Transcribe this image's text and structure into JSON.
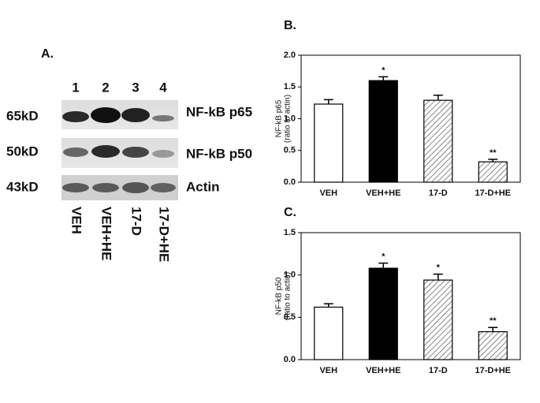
{
  "panel_a": {
    "label": "A.",
    "lanes": [
      "1",
      "2",
      "3",
      "4"
    ],
    "rows": [
      {
        "size": "65kD",
        "protein": "NF-kB p65"
      },
      {
        "size": "50kD",
        "protein": "NF-kB p50"
      },
      {
        "size": "43kD",
        "protein": "Actin"
      }
    ],
    "conditions": [
      "VEH",
      "VEH+HE",
      "17-D",
      "17-D+HE"
    ]
  },
  "chart_data": [
    {
      "type": "bar",
      "panel": "B.",
      "y_label": "NF-kB p65",
      "y_sublabel": "(ratio to actin)",
      "categories": [
        "VEH",
        "VEH+HE",
        "17-D",
        "17-D+HE"
      ],
      "values": [
        1.23,
        1.6,
        1.29,
        0.32
      ],
      "errors": [
        0.07,
        0.06,
        0.08,
        0.04
      ],
      "annotations": [
        null,
        "*",
        null,
        "**"
      ],
      "bar_fills": [
        "#ffffff",
        "#000000",
        "hatch",
        "hatch"
      ],
      "ylim": [
        0,
        2
      ],
      "yticks": [
        {
          "value": 0,
          "label": "0.0"
        },
        0.5,
        {
          "value": 1,
          "label": "1.0"
        },
        1.5,
        {
          "value": 2,
          "label": "2.0"
        }
      ]
    },
    {
      "type": "bar",
      "panel": "C.",
      "y_label": "NF-kB p50",
      "y_sublabel": "(ratio to actin)",
      "categories": [
        "VEH",
        "VEH+HE",
        "17-D",
        "17-D+HE"
      ],
      "values": [
        0.62,
        1.08,
        0.94,
        0.33
      ],
      "errors": [
        0.04,
        0.06,
        0.07,
        0.05
      ],
      "annotations": [
        null,
        "*",
        "*",
        "**"
      ],
      "bar_fills": [
        "#ffffff",
        "#000000",
        "hatch",
        "hatch"
      ],
      "ylim": [
        0,
        1.5
      ],
      "yticks": [
        {
          "value": 0,
          "label": "0.0"
        },
        0.5,
        {
          "value": 1,
          "label": "1.0"
        },
        1.5
      ]
    }
  ]
}
